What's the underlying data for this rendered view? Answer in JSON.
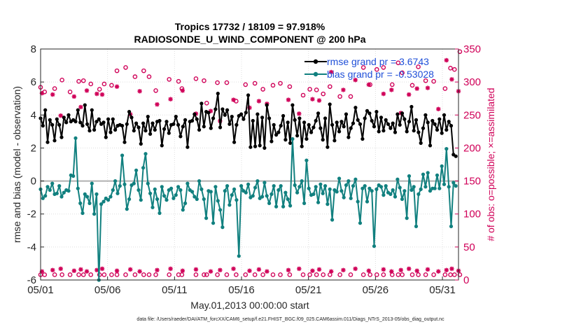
{
  "chart_data": {
    "type": "line",
    "title": "Tropics 17732 / 18109 = 97.918%",
    "subtitle": "RADIOSONDE_U_WIND_COMPONENT @ 200 hPa",
    "xlabel": "May.01,2013 00:00:00 start",
    "ylabel": "rmse and bias (model - observation)",
    "y2label": "# of obs: o=possible; ×=assimilated",
    "footer": "data file: /Users/raeder/DAI/ATM_forcXX/CAM6_setup/f.e21.FHIST_BGC.f09_025.CAM6assim.011/Diags_NTrS_2013-05/obs_diag_output.nc",
    "xlim": [
      0,
      31.2
    ],
    "ylim": [
      -6,
      8
    ],
    "y2lim": [
      0,
      350
    ],
    "x_ticks": [
      0,
      5,
      10,
      15,
      20,
      25,
      30
    ],
    "x_tick_labels": [
      "05/01",
      "05/06",
      "05/11",
      "05/16",
      "05/21",
      "05/26",
      "05/31"
    ],
    "y_ticks": [
      -6,
      -4,
      -2,
      0,
      2,
      4,
      6,
      8
    ],
    "y_tick_labels": [
      "-6",
      "-4",
      "-2",
      "0",
      "2",
      "4",
      "6",
      "8"
    ],
    "y2_ticks": [
      0,
      50,
      100,
      150,
      200,
      250,
      300,
      350
    ],
    "y2_tick_labels": [
      "0",
      "50",
      "100",
      "150",
      "200",
      "250",
      "300",
      "350"
    ],
    "colors": {
      "rmse": "#000000",
      "bias": "#11807f",
      "obs": "#d00058",
      "legend_text": "#1f4fd8",
      "zero_line": "#b0b0b0"
    },
    "series": [
      {
        "name": "rmse grand pr = 3.6743",
        "axis": "left",
        "values": [
          3.8,
          3.35,
          4.3,
          2.35,
          3.7,
          3.4,
          2.45,
          3.75,
          3.4,
          2.65,
          3.85,
          3.55,
          4.0,
          3.6,
          3.7,
          3.6,
          4.3,
          3.55,
          3.35,
          4.6,
          3.45,
          3.05,
          4.3,
          3.1,
          3.6,
          3.75,
          3.45,
          3.55,
          2.65,
          3.75,
          2.95,
          3.75,
          3.1,
          3.35,
          3.4,
          3.35,
          2.35,
          3.45,
          4.2,
          3.85,
          3.05,
          3.5,
          3.25,
          2.25,
          3.5,
          3.05,
          3.9,
          2.85,
          3.5,
          3.1,
          3.6,
          3.65,
          2.15,
          3.15,
          3.6,
          2.9,
          3.4,
          3.45,
          3.9,
          3.4,
          2.7,
          3.3,
          3.7,
          2.05,
          3.6,
          3.65,
          4.05,
          3.75,
          3.1,
          4.7,
          3.3,
          4.2,
          4.15,
          3.2,
          3.8,
          4.35,
          5.3,
          3.25,
          4.35,
          4.0,
          4.3,
          3.45,
          3.9,
          2.35,
          3.4,
          3.95,
          4.05,
          3.75,
          4.15,
          5.2,
          2.05,
          3.65,
          2.1,
          4.05,
          2.15,
          3.85,
          2.0,
          4.6,
          3.8,
          2.4,
          3.4,
          2.8,
          2.95,
          3.35,
          3.95,
          2.5,
          3.55,
          2.3,
          4.6,
          3.7,
          2.75,
          3.8,
          2.1,
          3.55,
          2.55,
          3.4,
          2.95,
          3.25,
          3.65,
          4.1,
          3.2,
          2.5,
          3.8,
          2.05,
          4.65,
          3.4,
          2.45,
          3.55,
          3.0,
          3.6,
          3.3,
          4.05,
          2.65,
          3.2,
          3.5,
          4.45,
          3.7,
          3.45,
          2.55,
          3.8,
          4.25,
          4.1,
          3.65,
          3.3,
          4.2,
          3.0,
          3.85,
          3.05,
          3.7,
          3.45,
          3.2,
          3.5,
          2.95,
          4.05,
          3.4,
          4.1,
          3.75,
          3.0,
          3.6,
          4.5,
          3.05,
          3.7,
          2.95,
          2.3,
          3.2,
          4.0,
          3.55,
          2.15,
          3.65,
          3.45,
          3.1,
          3.75,
          2.9,
          4.0,
          3.1,
          3.6,
          3.35,
          1.6,
          1.5
        ]
      },
      {
        "name": "bias grand pr = -0.53028",
        "axis": "left",
        "values": [
          -0.5,
          -1.05,
          -0.9,
          -0.35,
          -0.55,
          -0.15,
          -0.8,
          -0.75,
          -0.3,
          -0.95,
          -0.7,
          -0.55,
          -0.6,
          0.35,
          0.3,
          2.6,
          -0.45,
          -1.35,
          -1.95,
          -0.8,
          -0.95,
          -1.35,
          -0.15,
          -2.0,
          -0.8,
          -6.0,
          -1.4,
          -1.25,
          -1.05,
          -1.15,
          -0.95,
          -0.55,
          0.0,
          -0.75,
          -0.3,
          1.55,
          -0.2,
          -1.7,
          -1.1,
          -0.25,
          -0.15,
          0.65,
          -0.55,
          -1.15,
          0.8,
          1.65,
          -0.15,
          -0.75,
          -1.6,
          -0.5,
          -1.1,
          -1.95,
          -0.35,
          -0.9,
          -1.15,
          -0.55,
          -0.45,
          -1.05,
          -0.85,
          -0.35,
          -0.55,
          -1.75,
          -1.35,
          -0.15,
          -0.55,
          -0.65,
          -0.95,
          -1.1,
          0.0,
          -0.5,
          -1.1,
          -2.25,
          -0.6,
          -0.65,
          -2.55,
          -0.35,
          -1.2,
          -1.75,
          -2.8,
          -0.6,
          -0.3,
          -1.45,
          -0.85,
          -0.5,
          -1.15,
          -4.55,
          -0.3,
          -0.6,
          -0.7,
          -0.2,
          -1.0,
          -0.9,
          -0.4,
          0.0,
          -1.05,
          -0.95,
          -0.1,
          -0.9,
          -1.35,
          -0.8,
          -0.3,
          -1.55,
          -0.55,
          -0.3,
          -1.55,
          -0.7,
          -1.1,
          -1.5,
          2.55,
          -0.25,
          -0.7,
          -0.35,
          0.0,
          -1.35,
          1.25,
          -0.45,
          -0.85,
          -0.8,
          -0.35,
          -1.3,
          -0.2,
          -0.75,
          -0.3,
          -1.4,
          -0.5,
          -2.35,
          -0.55,
          -0.65,
          0.15,
          -0.6,
          -1.0,
          -0.25,
          0.0,
          -1.05,
          -0.3,
          0.1,
          -1.25,
          -2.55,
          -0.45,
          -0.3,
          -1.25,
          -0.45,
          -0.6,
          -3.95,
          -0.5,
          -0.25,
          -0.35,
          -0.85,
          -0.3,
          -0.7,
          -0.8,
          -0.55,
          -0.95,
          0.1,
          -0.4,
          -1.1,
          -0.6,
          -2.25,
          0.3,
          -0.55,
          -0.35,
          -2.75,
          -0.8,
          -0.5,
          0.4,
          -0.35,
          0.5,
          -0.6,
          -0.45,
          -0.45,
          0.35,
          -0.45,
          0.9,
          -0.2,
          1.95,
          -0.35,
          -2.75,
          -0.1,
          -0.3
        ]
      },
      {
        "name": "obs possible",
        "axis": "right",
        "marker": "o",
        "x": [
          0.0,
          0.3,
          1.05,
          1.6,
          2.2,
          2.85,
          3.2,
          3.75,
          4.4,
          4.75,
          5.3,
          5.7,
          6.35,
          7.05,
          7.7,
          8.1,
          8.6,
          9.6,
          10.3,
          10.55,
          11.6,
          12.2,
          12.4,
          13.2,
          13.9,
          14.6,
          15.3,
          16.0,
          16.6,
          17.35,
          17.9,
          18.6,
          19.6,
          20.1,
          20.6,
          21.1,
          21.6,
          22.35,
          23.15,
          24.1,
          24.6,
          25.1,
          25.6,
          26.25,
          26.7,
          27.0,
          27.75,
          28.2,
          28.75,
          29.35,
          30.2,
          30.6,
          30.9,
          31.3
        ],
        "y": [
          292,
          285,
          290,
          303,
          285,
          301,
          302,
          297,
          289,
          297,
          295,
          317,
          322,
          308,
          317,
          308,
          287,
          304,
          301,
          290,
          305,
          302,
          268,
          299,
          299,
          271,
          296,
          298,
          289,
          295,
          298,
          293,
          280,
          289,
          288,
          282,
          293,
          278,
          278,
          322,
          296,
          319,
          322,
          296,
          329,
          314,
          295,
          323,
          302,
          301,
          290,
          321,
          319,
          346
        ]
      },
      {
        "name": "obs assimilated",
        "axis": "right",
        "marker": "x",
        "x": [
          0.1,
          0.9,
          1.5,
          2.5,
          3.0,
          3.45,
          4.2,
          4.6,
          5.7,
          6.7,
          7.4,
          8.7,
          9.7,
          10.6,
          11.6,
          12.7,
          13.4,
          14.4,
          15.6,
          16.3,
          16.9,
          18.5,
          19.3,
          20.3,
          20.8,
          21.7,
          22.6,
          23.5,
          24.5,
          25.6,
          26.2,
          26.9,
          27.5,
          28.1,
          28.9,
          29.7,
          30.3,
          30.7,
          31.2
        ],
        "y": [
          283,
          281,
          249,
          278,
          262,
          287,
          282,
          281,
          293,
          251,
          286,
          266,
          274,
          287,
          252,
          256,
          241,
          273,
          261,
          271,
          267,
          273,
          252,
          274,
          272,
          315,
          288,
          303,
          296,
          282,
          288,
          253,
          281,
          290,
          291,
          259,
          333,
          304,
          286
        ]
      }
    ]
  }
}
